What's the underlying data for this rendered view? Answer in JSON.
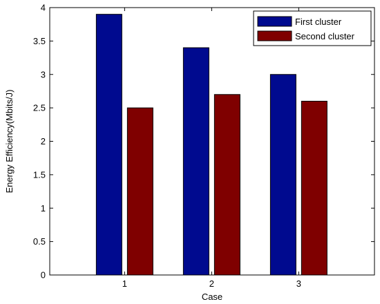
{
  "chart_data": {
    "type": "bar",
    "categories": [
      "1",
      "2",
      "3"
    ],
    "series": [
      {
        "name": "First cluster",
        "values": [
          3.9,
          3.4,
          3.0
        ],
        "color": "#000a8f"
      },
      {
        "name": "Second cluster",
        "values": [
          2.5,
          2.7,
          2.6
        ],
        "color": "#7f0000"
      }
    ],
    "xlabel": "Case",
    "ylabel": "Energy Efficiency(Mbits/J)",
    "ylim": [
      0,
      4
    ],
    "yticks": [
      0,
      0.5,
      1,
      1.5,
      2,
      2.5,
      3,
      3.5,
      4
    ],
    "ytick_labels": [
      "0",
      "0.5",
      "1",
      "1.5",
      "2",
      "2.5",
      "3",
      "3.5",
      "4"
    ],
    "grid": false,
    "legend_position": "top-right"
  }
}
